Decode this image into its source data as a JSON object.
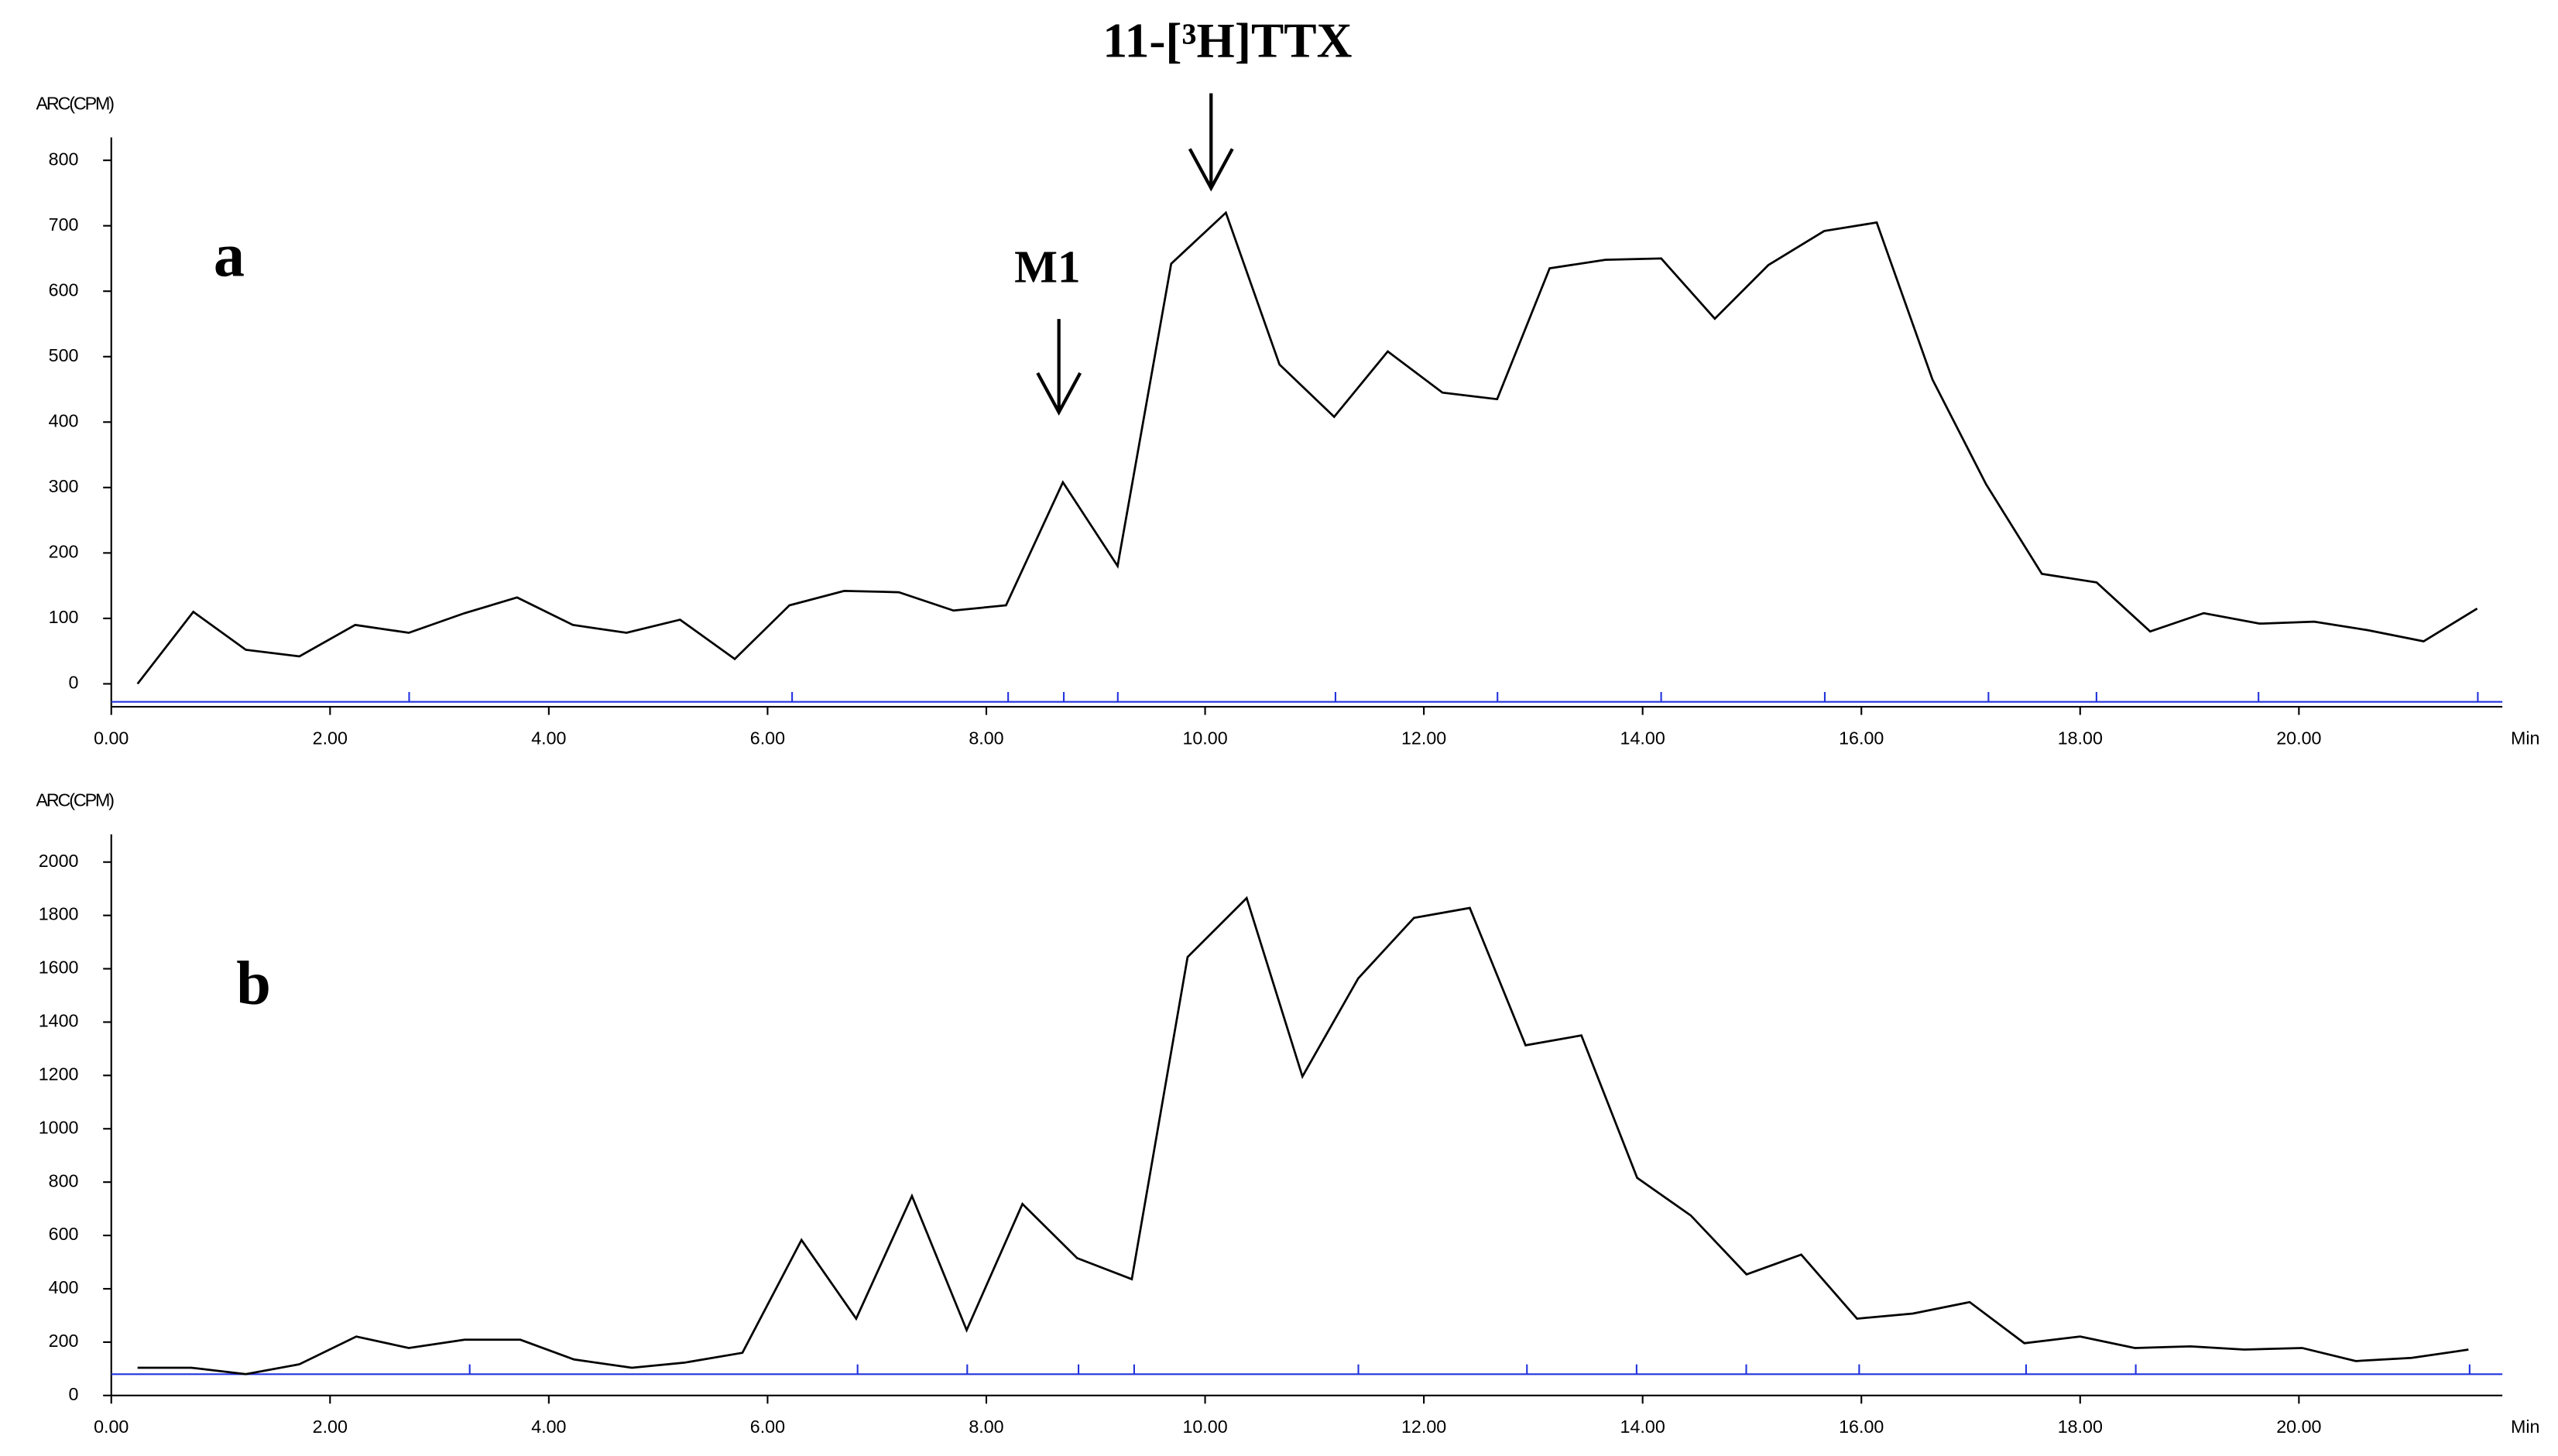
{
  "chart_data": [
    {
      "type": "line",
      "panel_label": "a",
      "y_label": "ARC(CPM)",
      "x_label": "Min",
      "color": "#000000",
      "annotations": [
        "M1",
        "11-[³H]TTX"
      ],
      "x": [
        0.24,
        0.75,
        1.23,
        1.72,
        2.23,
        2.72,
        3.23,
        3.71,
        4.22,
        4.71,
        5.2,
        5.7,
        6.2,
        6.7,
        7.2,
        7.7,
        8.18,
        8.7,
        9.2,
        9.69,
        10.19,
        10.68,
        11.18,
        11.67,
        12.17,
        12.67,
        13.15,
        13.66,
        14.17,
        14.66,
        15.15,
        15.66,
        16.14,
        16.65,
        17.14,
        17.65,
        18.15,
        18.64,
        19.13,
        19.64,
        20.14,
        20.63,
        21.14,
        21.63
      ],
      "values": [
        0,
        110,
        52,
        42,
        90,
        78,
        108,
        132,
        90,
        78,
        98,
        38,
        120,
        142,
        140,
        112,
        120,
        308,
        180,
        642,
        720,
        488,
        408,
        508,
        445,
        435,
        635,
        648,
        650,
        558,
        640,
        692,
        705,
        465,
        305,
        168,
        155,
        80,
        108,
        92,
        95,
        82,
        65,
        115
      ],
      "xlim": [
        0,
        21.86
      ],
      "ylim": [
        -35,
        835
      ],
      "xticks": [
        {
          "value": 0,
          "label": "0.00"
        },
        {
          "value": 2,
          "label": "2.00"
        },
        {
          "value": 4,
          "label": "4.00"
        },
        {
          "value": 6,
          "label": "6.00"
        },
        {
          "value": 8,
          "label": "8.00"
        },
        {
          "value": 10,
          "label": "10.00"
        },
        {
          "value": 12,
          "label": "12.00"
        },
        {
          "value": 14,
          "label": "14.00"
        },
        {
          "value": 16,
          "label": "16.00"
        },
        {
          "value": 18,
          "label": "18.00"
        },
        {
          "value": 20,
          "label": "20.00"
        }
      ],
      "yticks": [
        0,
        100,
        200,
        300,
        400,
        500,
        600,
        700,
        800
      ]
    },
    {
      "type": "line",
      "panel_label": "b",
      "y_label": "ARC(CPM)",
      "x_label": "Min",
      "color": "#000000",
      "x": [
        0.24,
        0.73,
        1.23,
        1.72,
        2.24,
        2.72,
        3.23,
        3.74,
        4.23,
        4.76,
        5.24,
        5.77,
        6.31,
        6.81,
        7.32,
        7.82,
        8.33,
        8.83,
        9.33,
        9.84,
        10.38,
        10.89,
        11.4,
        11.91,
        12.42,
        12.93,
        13.44,
        13.95,
        14.44,
        14.95,
        15.45,
        15.96,
        16.47,
        16.99,
        17.49,
        18.0,
        18.5,
        19.01,
        19.5,
        20.03,
        20.52,
        21.03,
        21.55
      ],
      "values": [
        104,
        104,
        80,
        117,
        221,
        178,
        209,
        209,
        135,
        104,
        123,
        160,
        583,
        288,
        748,
        245,
        718,
        515,
        436,
        1644,
        1865,
        1196,
        1564,
        1791,
        1828,
        1313,
        1350,
        816,
        675,
        454,
        528,
        288,
        307,
        350,
        196,
        221,
        178,
        184,
        172,
        178,
        129,
        141,
        172
      ],
      "xlim": [
        0,
        21.86
      ],
      "ylim": [
        0,
        2104
      ],
      "xticks": [
        {
          "value": 0,
          "label": "0.00"
        },
        {
          "value": 2,
          "label": "2.00"
        },
        {
          "value": 4,
          "label": "4.00"
        },
        {
          "value": 6,
          "label": "6.00"
        },
        {
          "value": 8,
          "label": "8.00"
        },
        {
          "value": 10,
          "label": "10.00"
        },
        {
          "value": 12,
          "label": "12.00"
        },
        {
          "value": 14,
          "label": "14.00"
        },
        {
          "value": 16,
          "label": "16.00"
        },
        {
          "value": 18,
          "label": "18.00"
        },
        {
          "value": 20,
          "label": "20.00"
        }
      ],
      "yticks": [
        0,
        200,
        400,
        600,
        800,
        1000,
        1200,
        1400,
        1600,
        1800,
        2000
      ]
    }
  ]
}
